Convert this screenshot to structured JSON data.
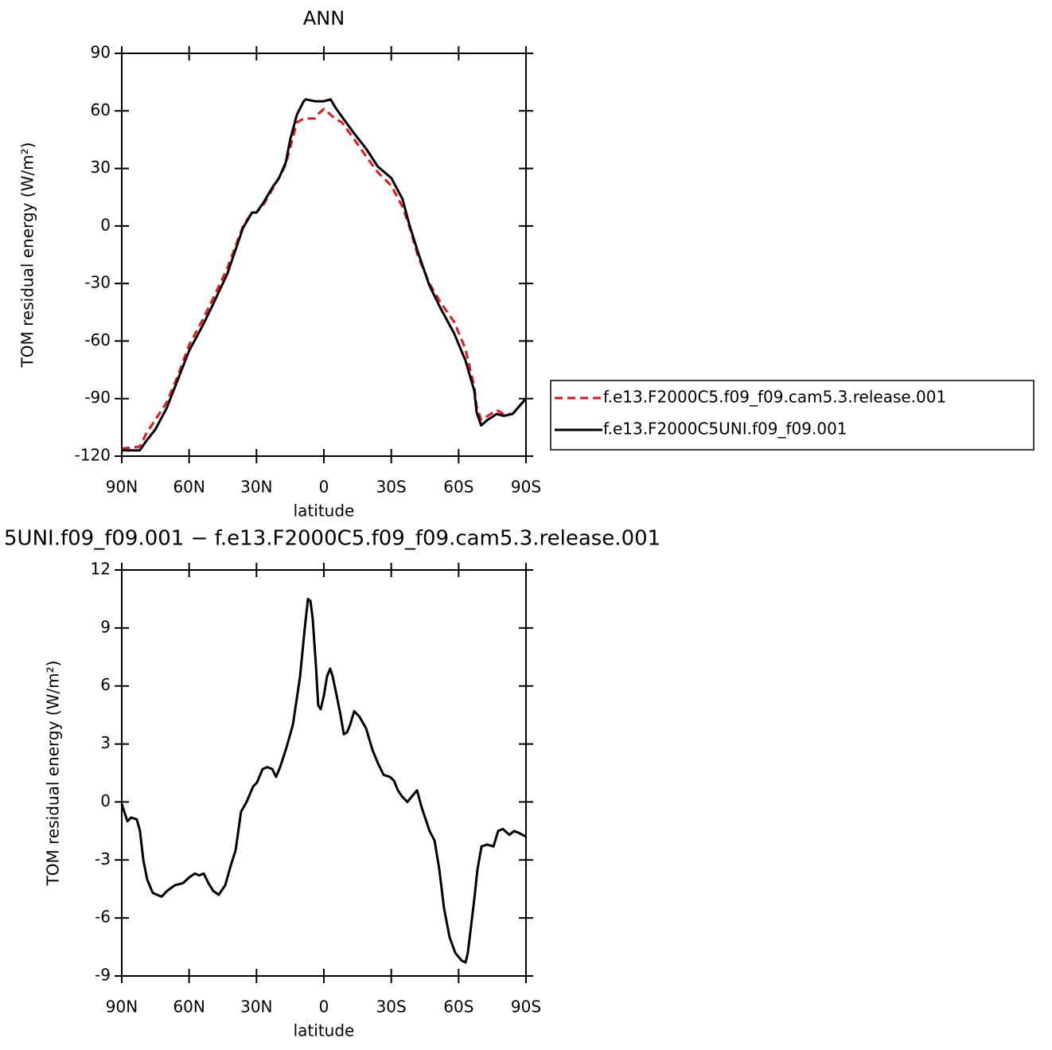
{
  "chart_data": [
    {
      "type": "line",
      "title": "ANN",
      "y_label": "TOM residual energy (W/m²)",
      "x_label": "latitude",
      "xlim": [
        90,
        -90
      ],
      "xticks": [
        {
          "value": 90,
          "label": "90N"
        },
        {
          "value": 60,
          "label": "60N"
        },
        {
          "value": 30,
          "label": "30N"
        },
        0,
        {
          "value": -30,
          "label": "30S"
        },
        {
          "value": -60,
          "label": "60S"
        },
        {
          "value": -90,
          "label": "90S"
        }
      ],
      "ylim": [
        -120,
        90
      ],
      "yticks": [
        -120,
        -90,
        -60,
        -30,
        0,
        30,
        60,
        90
      ],
      "x": [
        90,
        82,
        79,
        75,
        70,
        65,
        60,
        54,
        49,
        43,
        36,
        32,
        30,
        27,
        23,
        20,
        17,
        15,
        12,
        9,
        8,
        4,
        2,
        0,
        -3,
        -5,
        -8,
        -13,
        -19,
        -24,
        -30,
        -35,
        -38,
        -42,
        -47,
        -52,
        -58,
        -63,
        -67,
        -68,
        -70,
        -73,
        -77,
        -80,
        -84,
        -90
      ],
      "series": [
        {
          "name": "f.e13.F2000C5.f09_f09.cam5.3.release.001",
          "color": "#e8151b",
          "dash": "dashed",
          "values": [
            -116,
            -115,
            -108,
            -101,
            -92,
            -78,
            -62,
            -49,
            -37,
            -22,
            0,
            7,
            7,
            11,
            19,
            25,
            32,
            41,
            54,
            56,
            56,
            56,
            59,
            61,
            58,
            56,
            54,
            46,
            36,
            28,
            21,
            10,
            0,
            -16,
            -30,
            -40,
            -50,
            -64,
            -84,
            -94,
            -101,
            -99,
            -96,
            -98,
            -98,
            -90
          ]
        },
        {
          "name": "f.e13.F2000C5UNI.f09_f09.001",
          "color": "#000000",
          "dash": "solid",
          "values": [
            -117,
            -117,
            -112,
            -106,
            -95,
            -80,
            -65,
            -52,
            -40,
            -25,
            -1,
            7,
            7,
            12,
            20,
            25,
            33,
            45,
            58,
            65,
            66,
            65,
            65,
            65,
            66,
            62,
            57,
            49,
            40,
            31,
            25,
            14,
            1,
            -14,
            -31,
            -43,
            -56,
            -70,
            -86,
            -97,
            -104,
            -101,
            -98,
            -99,
            -98,
            -90
          ]
        }
      ]
    },
    {
      "type": "line",
      "title": "5UNI.f09_f09.001 − f.e13.F2000C5.f09_f09.cam5.3.release.001",
      "y_label": "TOM residual energy (W/m²)",
      "x_label": "latitude",
      "xlim": [
        90,
        -90
      ],
      "xticks": [
        {
          "value": 90,
          "label": "90N"
        },
        {
          "value": 60,
          "label": "60N"
        },
        {
          "value": 30,
          "label": "30N"
        },
        0,
        {
          "value": -30,
          "label": "30S"
        },
        {
          "value": -60,
          "label": "60S"
        },
        {
          "value": -90,
          "label": "90S"
        }
      ],
      "ylim": [
        -9,
        12
      ],
      "yticks": [
        -9,
        -6,
        -3,
        0,
        3,
        6,
        9,
        12
      ],
      "x": [
        90.0,
        88.9,
        87.5,
        85.8,
        83.3,
        81.9,
        80.4,
        78.7,
        76.2,
        72.3,
        69.8,
        66.3,
        62.7,
        59.9,
        57.4,
        55.6,
        53.5,
        51.4,
        49.3,
        46.8,
        43.9,
        41.5,
        39.3,
        36.9,
        34.4,
        31.5,
        29.8,
        27.3,
        25.2,
        23.0,
        21.3,
        19.5,
        16.7,
        13.8,
        10.6,
        8.5,
        7.1,
        6.0,
        5.0,
        3.5,
        2.5,
        1.4,
        0,
        -1.4,
        -2.8,
        -3.9,
        -5.7,
        -7.4,
        -8.9,
        -10.3,
        -11.7,
        -13.5,
        -15.9,
        -18.8,
        -21.6,
        -24.1,
        -26.6,
        -29.4,
        -31.2,
        -33.0,
        -34.7,
        -37.2,
        -39.3,
        -41.5,
        -43.6,
        -47.1,
        -49.3,
        -51.4,
        -53.5,
        -56.0,
        -58.5,
        -61.3,
        -63.1,
        -64.1,
        -67.0,
        -68.4,
        -70.2,
        -72.7,
        -75.5,
        -77.6,
        -79.7,
        -82.6,
        -84.7,
        -86.8,
        -90.0
      ],
      "series": [
        {
          "color": "#000000",
          "dash": "solid",
          "values": [
            -0.1,
            -0.5,
            -1.0,
            -0.8,
            -0.9,
            -1.5,
            -3.0,
            -4.0,
            -4.7,
            -4.9,
            -4.6,
            -4.3,
            -4.2,
            -3.9,
            -3.7,
            -3.8,
            -3.7,
            -4.2,
            -4.6,
            -4.8,
            -4.3,
            -3.3,
            -2.5,
            -0.5,
            0.0,
            0.8,
            1.0,
            1.7,
            1.8,
            1.7,
            1.3,
            1.8,
            2.8,
            4.0,
            6.5,
            9.0,
            10.5,
            10.4,
            9.5,
            7.0,
            5.0,
            4.8,
            5.5,
            6.5,
            6.9,
            6.5,
            5.5,
            4.5,
            3.5,
            3.6,
            4.0,
            4.7,
            4.4,
            3.8,
            2.7,
            2.0,
            1.4,
            1.3,
            1.1,
            0.6,
            0.3,
            0.0,
            0.3,
            0.6,
            -0.3,
            -1.5,
            -2.0,
            -3.5,
            -5.5,
            -7.0,
            -7.8,
            -8.2,
            -8.3,
            -7.8,
            -5.0,
            -3.5,
            -2.3,
            -2.2,
            -2.3,
            -1.5,
            -1.4,
            -1.7,
            -1.5,
            -1.6,
            -1.8
          ]
        }
      ]
    }
  ]
}
